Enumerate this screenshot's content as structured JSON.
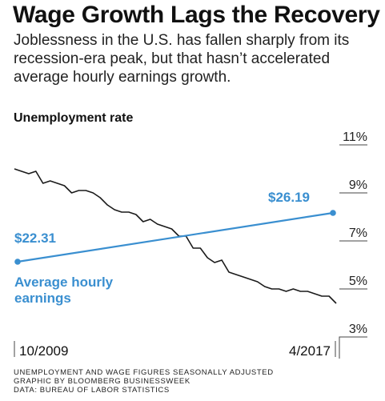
{
  "header": {
    "title": "Wage Growth Lags the Recovery",
    "subtitle": "Joblessness in the U.S. has fallen sharply from its recession-era peak, but that hasn’t accelerated average hourly earnings growth."
  },
  "footnote": {
    "lines": [
      "UNEMPLOYMENT AND WAGE FIGURES SEASONALLY ADJUSTED",
      "GRAPHIC BY BLOOMBERG BUSINESSWEEK",
      "DATA: BUREAU OF LABOR STATISTICS"
    ]
  },
  "colors": {
    "unemployment": "#1a1a1a",
    "wages": "#3a8fd0",
    "gridline": "#444444"
  },
  "chart_data": {
    "type": "line",
    "ylabel": "Unemployment rate",
    "xlabel": "",
    "x_tick_labels": [
      "10/2009",
      "4/2017"
    ],
    "y_ticks": [
      11,
      9,
      7,
      5,
      3
    ],
    "y_tick_labels": [
      "11%",
      "9%",
      "7%",
      "5%",
      "3%"
    ],
    "ylim": [
      3,
      11
    ],
    "y_axis_position": "right",
    "grid": false,
    "series": [
      {
        "name": "Unemployment rate",
        "axis": "right",
        "unit": "%",
        "x": [
          "2009-10",
          "2009-12",
          "2010-02",
          "2010-04",
          "2010-06",
          "2010-08",
          "2010-10",
          "2010-12",
          "2011-02",
          "2011-04",
          "2011-06",
          "2011-08",
          "2011-10",
          "2011-12",
          "2012-02",
          "2012-04",
          "2012-06",
          "2012-08",
          "2012-10",
          "2012-12",
          "2013-02",
          "2013-04",
          "2013-06",
          "2013-08",
          "2013-10",
          "2013-12",
          "2014-02",
          "2014-04",
          "2014-06",
          "2014-08",
          "2014-10",
          "2014-12",
          "2015-02",
          "2015-04",
          "2015-06",
          "2015-08",
          "2015-10",
          "2015-12",
          "2016-02",
          "2016-04",
          "2016-06",
          "2016-08",
          "2016-10",
          "2016-12",
          "2017-02",
          "2017-04"
        ],
        "values": [
          10.0,
          9.9,
          9.8,
          9.9,
          9.4,
          9.5,
          9.4,
          9.3,
          9.0,
          9.1,
          9.1,
          9.0,
          8.8,
          8.5,
          8.3,
          8.2,
          8.2,
          8.1,
          7.8,
          7.9,
          7.7,
          7.6,
          7.5,
          7.2,
          7.2,
          6.7,
          6.7,
          6.3,
          6.1,
          6.2,
          5.7,
          5.6,
          5.5,
          5.4,
          5.3,
          5.1,
          5.0,
          5.0,
          4.9,
          5.0,
          4.9,
          4.9,
          4.8,
          4.7,
          4.7,
          4.4
        ]
      },
      {
        "name": "Average hourly earnings",
        "axis": "none",
        "unit": "$",
        "x": [
          "2009-10",
          "2017-04"
        ],
        "values": [
          22.31,
          26.19
        ],
        "start_label": "$22.31",
        "end_label": "$26.19"
      }
    ]
  }
}
